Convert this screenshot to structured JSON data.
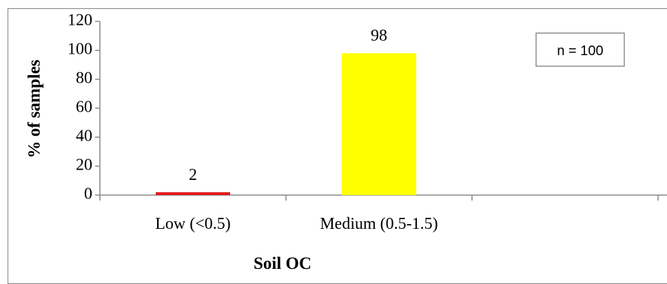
{
  "chart_data": {
    "type": "bar",
    "categories": [
      "Low  (<0.5)",
      "Medium (0.5-1.5)",
      ""
    ],
    "values": [
      2,
      98,
      null
    ],
    "data_labels": [
      "2",
      "98",
      ""
    ],
    "bar_colors": [
      "#e41a1c",
      "#ffff00",
      "#ffffff"
    ],
    "ylabel": "%  of samples",
    "xlabel": "Soil OC",
    "ylim": [
      0,
      120
    ],
    "yticks": [
      0,
      20,
      40,
      60,
      80,
      100,
      120
    ],
    "annotation": "n = 100",
    "grid": false
  }
}
